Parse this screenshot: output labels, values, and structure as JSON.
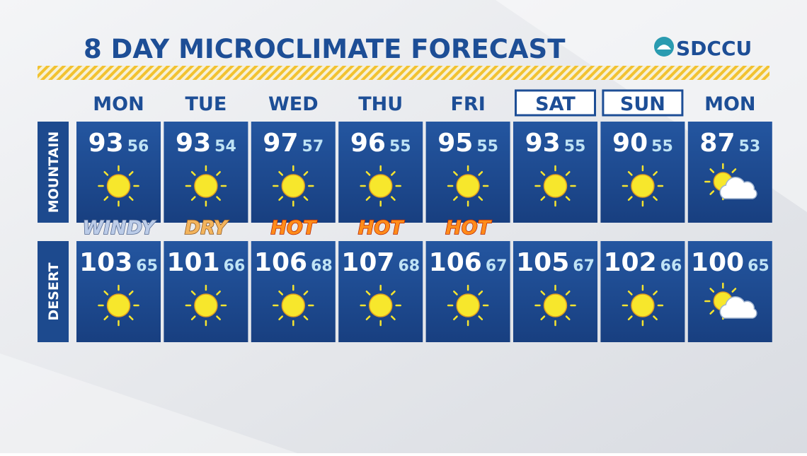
{
  "header": {
    "title": "8 DAY MICROCLIMATE FORECAST",
    "logo": "SDCCU"
  },
  "days": [
    {
      "label": "MON",
      "boxed": false
    },
    {
      "label": "TUE",
      "boxed": false
    },
    {
      "label": "WED",
      "boxed": false
    },
    {
      "label": "THU",
      "boxed": false
    },
    {
      "label": "FRI",
      "boxed": false
    },
    {
      "label": "SAT",
      "boxed": true
    },
    {
      "label": "SUN",
      "boxed": true
    },
    {
      "label": "MON",
      "boxed": false
    }
  ],
  "rows": [
    {
      "label": "MOUNTAIN",
      "highs": [
        93,
        93,
        97,
        96,
        95,
        93,
        90,
        87
      ],
      "lows": [
        56,
        54,
        57,
        55,
        55,
        55,
        55,
        53
      ],
      "icons": [
        "sun",
        "sun",
        "sun",
        "sun",
        "sun",
        "sun",
        "sun",
        "partly-cloudy"
      ]
    },
    {
      "label": "DESERT",
      "highs": [
        103,
        101,
        106,
        107,
        106,
        105,
        102,
        100
      ],
      "lows": [
        65,
        66,
        68,
        68,
        67,
        67,
        66,
        65
      ],
      "icons": [
        "sun",
        "sun",
        "sun",
        "sun",
        "sun",
        "sun",
        "sun",
        "partly-cloudy"
      ]
    }
  ],
  "tags": [
    {
      "text": "WINDY",
      "color": "#bccce8",
      "outline": "#4f6590"
    },
    {
      "text": "DRY",
      "color": "#f3b45c",
      "outline": "#8a5420"
    },
    {
      "text": "HOT",
      "color": "#ff8c1a",
      "outline": "#b82400"
    },
    {
      "text": "HOT",
      "color": "#ff8c1a",
      "outline": "#b82400"
    },
    {
      "text": "HOT",
      "color": "#ff8c1a",
      "outline": "#b82400"
    },
    null,
    null,
    null
  ]
}
